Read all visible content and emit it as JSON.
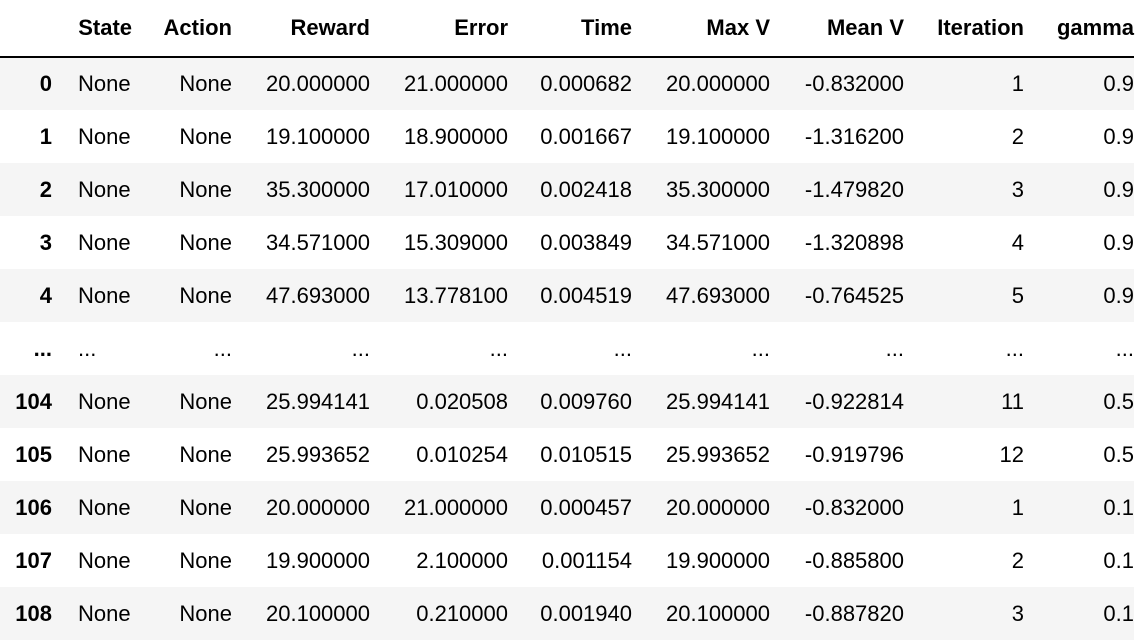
{
  "table": {
    "columns": [
      "",
      "State",
      "Action",
      "Reward",
      "Error",
      "Time",
      "Max V",
      "Mean V",
      "Iteration",
      "gamma"
    ],
    "rows": [
      [
        "0",
        "None",
        "None",
        "20.000000",
        "21.000000",
        "0.000682",
        "20.000000",
        "-0.832000",
        "1",
        "0.9"
      ],
      [
        "1",
        "None",
        "None",
        "19.100000",
        "18.900000",
        "0.001667",
        "19.100000",
        "-1.316200",
        "2",
        "0.9"
      ],
      [
        "2",
        "None",
        "None",
        "35.300000",
        "17.010000",
        "0.002418",
        "35.300000",
        "-1.479820",
        "3",
        "0.9"
      ],
      [
        "3",
        "None",
        "None",
        "34.571000",
        "15.309000",
        "0.003849",
        "34.571000",
        "-1.320898",
        "4",
        "0.9"
      ],
      [
        "4",
        "None",
        "None",
        "47.693000",
        "13.778100",
        "0.004519",
        "47.693000",
        "-0.764525",
        "5",
        "0.9"
      ],
      [
        "...",
        "...",
        "...",
        "...",
        "...",
        "...",
        "...",
        "...",
        "...",
        "..."
      ],
      [
        "104",
        "None",
        "None",
        "25.994141",
        "0.020508",
        "0.009760",
        "25.994141",
        "-0.922814",
        "11",
        "0.5"
      ],
      [
        "105",
        "None",
        "None",
        "25.993652",
        "0.010254",
        "0.010515",
        "25.993652",
        "-0.919796",
        "12",
        "0.5"
      ],
      [
        "106",
        "None",
        "None",
        "20.000000",
        "21.000000",
        "0.000457",
        "20.000000",
        "-0.832000",
        "1",
        "0.1"
      ],
      [
        "107",
        "None",
        "None",
        "19.900000",
        "2.100000",
        "0.001154",
        "19.900000",
        "-0.885800",
        "2",
        "0.1"
      ],
      [
        "108",
        "None",
        "None",
        "20.100000",
        "0.210000",
        "0.001940",
        "20.100000",
        "-0.887820",
        "3",
        "0.1"
      ]
    ]
  }
}
